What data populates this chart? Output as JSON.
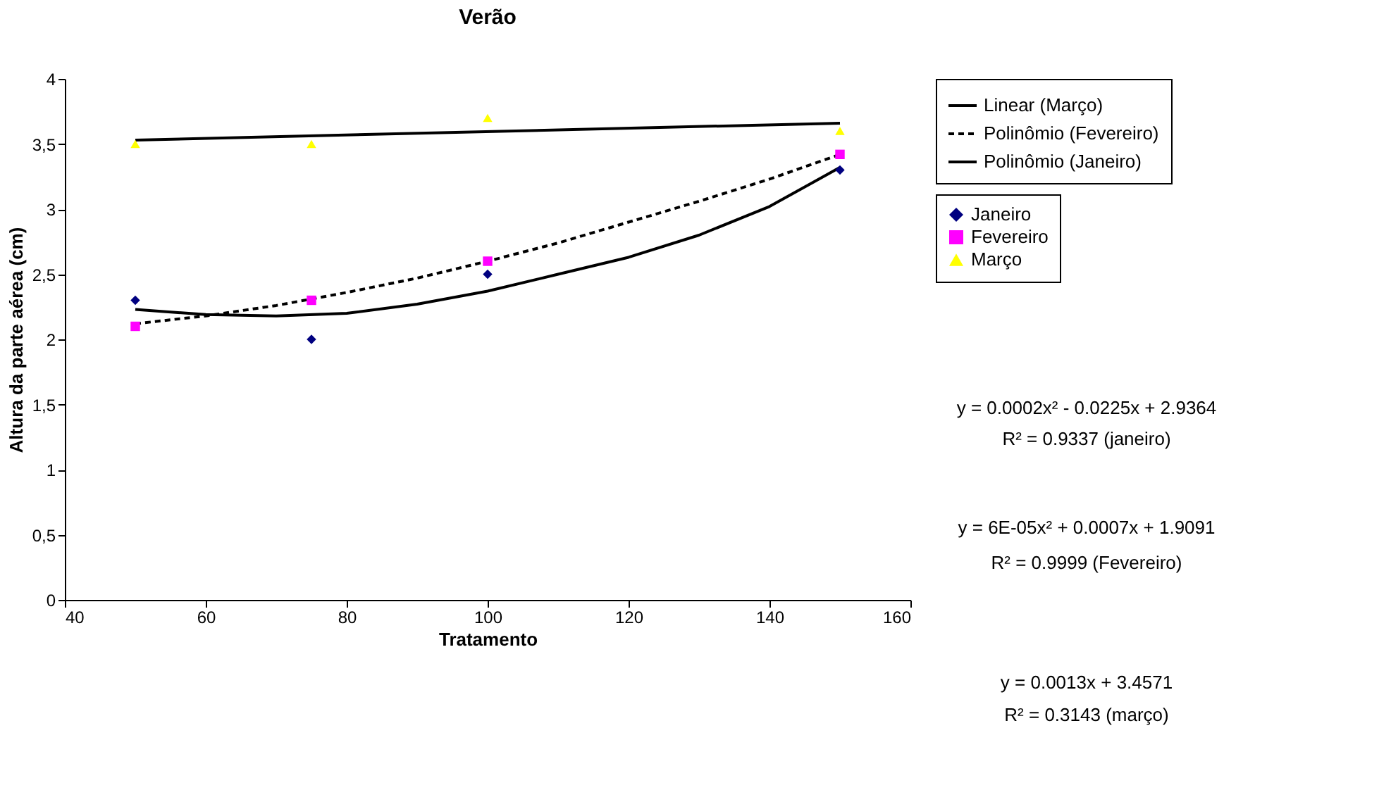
{
  "chart_data": {
    "type": "scatter",
    "title": "Verão",
    "xlabel": "Tratamento",
    "ylabel": "Altura da parte aérea (cm)",
    "x": [
      50,
      75,
      100,
      150
    ],
    "series": [
      {
        "name": "Janeiro",
        "color": "#000080",
        "marker": "diamond",
        "values": [
          2.3,
          2.0,
          2.5,
          3.3
        ]
      },
      {
        "name": "Fevereiro",
        "color": "#ff00ff",
        "marker": "square",
        "values": [
          2.1,
          2.3,
          2.6,
          3.42
        ]
      },
      {
        "name": "Março",
        "color": "#ffff00",
        "marker": "triangle",
        "values": [
          3.5,
          3.5,
          3.7,
          3.6
        ]
      },
      {
        "name": "Linear (Março)",
        "type": "line",
        "color": "#000000",
        "line_style": "solid",
        "marker": "none",
        "x": [
          50,
          150
        ],
        "values": [
          3.53,
          3.66
        ]
      },
      {
        "name": "Polinômio (Fevereiro)",
        "type": "line",
        "color": "#000000",
        "line_style": "dashed",
        "marker": "none",
        "x": [
          50,
          60,
          70,
          80,
          90,
          100,
          110,
          120,
          130,
          140,
          150
        ],
        "values": [
          2.12,
          2.18,
          2.26,
          2.36,
          2.47,
          2.6,
          2.74,
          2.9,
          3.06,
          3.23,
          3.42
        ]
      },
      {
        "name": "Polinômio (Janeiro)",
        "type": "line",
        "color": "#000000",
        "line_style": "solid",
        "marker": "none",
        "x": [
          50,
          60,
          70,
          80,
          90,
          100,
          110,
          120,
          130,
          140,
          150
        ],
        "values": [
          2.23,
          2.19,
          2.18,
          2.2,
          2.27,
          2.37,
          2.5,
          2.63,
          2.8,
          3.02,
          3.32
        ]
      }
    ],
    "xlim": [
      40,
      160
    ],
    "xticks": [
      40,
      60,
      80,
      100,
      120,
      140,
      160
    ],
    "ylim": [
      0,
      4
    ],
    "yticks": [
      0,
      {
        "value": 0.5,
        "label": "0,5"
      },
      1,
      {
        "value": 1.5,
        "label": "1,5"
      },
      2,
      {
        "value": 2.5,
        "label": "2,5"
      },
      3,
      {
        "value": 3.5,
        "label": "3,5"
      },
      4
    ],
    "grid": false,
    "legend": "right",
    "annotations": [
      "y = 0.0002x² - 0.0225x + 2.9364",
      "R² = 0.9337 (janeiro)",
      "y = 6E-05x² + 0.0007x + 1.9091",
      "R² = 0.9999 (Fevereiro)",
      "y = 0.0013x + 3.4571",
      "R² = 0.3143 (março)"
    ]
  }
}
